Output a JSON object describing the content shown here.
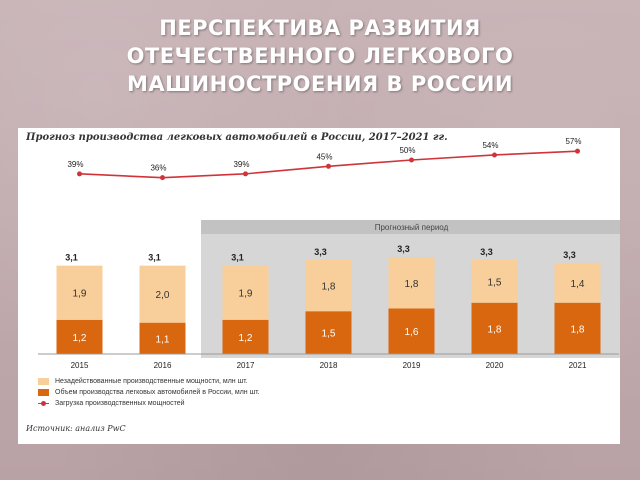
{
  "slide": {
    "title_lines": [
      "ПЕРСПЕКТИВА РАЗВИТИЯ",
      "ОТЕЧЕСТВЕННОГО ЛЕГКОВОГО",
      "МАШИНОСТРОЕНИЯ В РОССИИ"
    ]
  },
  "chart_data": {
    "type": "bar",
    "subtype": "stacked-bar-with-line",
    "title": "Прогноз производства легковых автомобилей в России, 2017–2021 гг.",
    "categories": [
      "2015",
      "2016",
      "2017",
      "2018",
      "2019",
      "2020",
      "2021"
    ],
    "series": [
      {
        "name": "Объем производства легковых автомобилей в России, млн шт.",
        "values": [
          1.2,
          1.1,
          1.2,
          1.5,
          1.6,
          1.8,
          1.8
        ],
        "labels": [
          "1,2",
          "1,1",
          "1,2",
          "1,5",
          "1,6",
          "1,8",
          "1,8"
        ],
        "color": "#d9670f"
      },
      {
        "name": "Незадействованные производственные мощности, млн шт.",
        "values": [
          1.9,
          2.0,
          1.9,
          1.8,
          1.8,
          1.5,
          1.4
        ],
        "labels": [
          "1,9",
          "2,0",
          "1,9",
          "1,8",
          "1,8",
          "1,5",
          "1,4"
        ],
        "color": "#f8cf9a"
      }
    ],
    "totals": [
      "3,1",
      "3,1",
      "3,1",
      "3,3",
      "3,3",
      "3,3",
      "3,3"
    ],
    "line": {
      "name": "Загрузка производственных мощностей",
      "values": [
        39,
        36,
        39,
        45,
        50,
        54,
        57
      ],
      "labels": [
        "39%",
        "36%",
        "39%",
        "45%",
        "50%",
        "54%",
        "57%"
      ],
      "color": "#d0343a"
    },
    "forecast": {
      "label": "Прогнозный период",
      "from_category": "2017"
    },
    "ylim": [
      0,
      3.5
    ],
    "source": "Источник: анализ PwC"
  }
}
